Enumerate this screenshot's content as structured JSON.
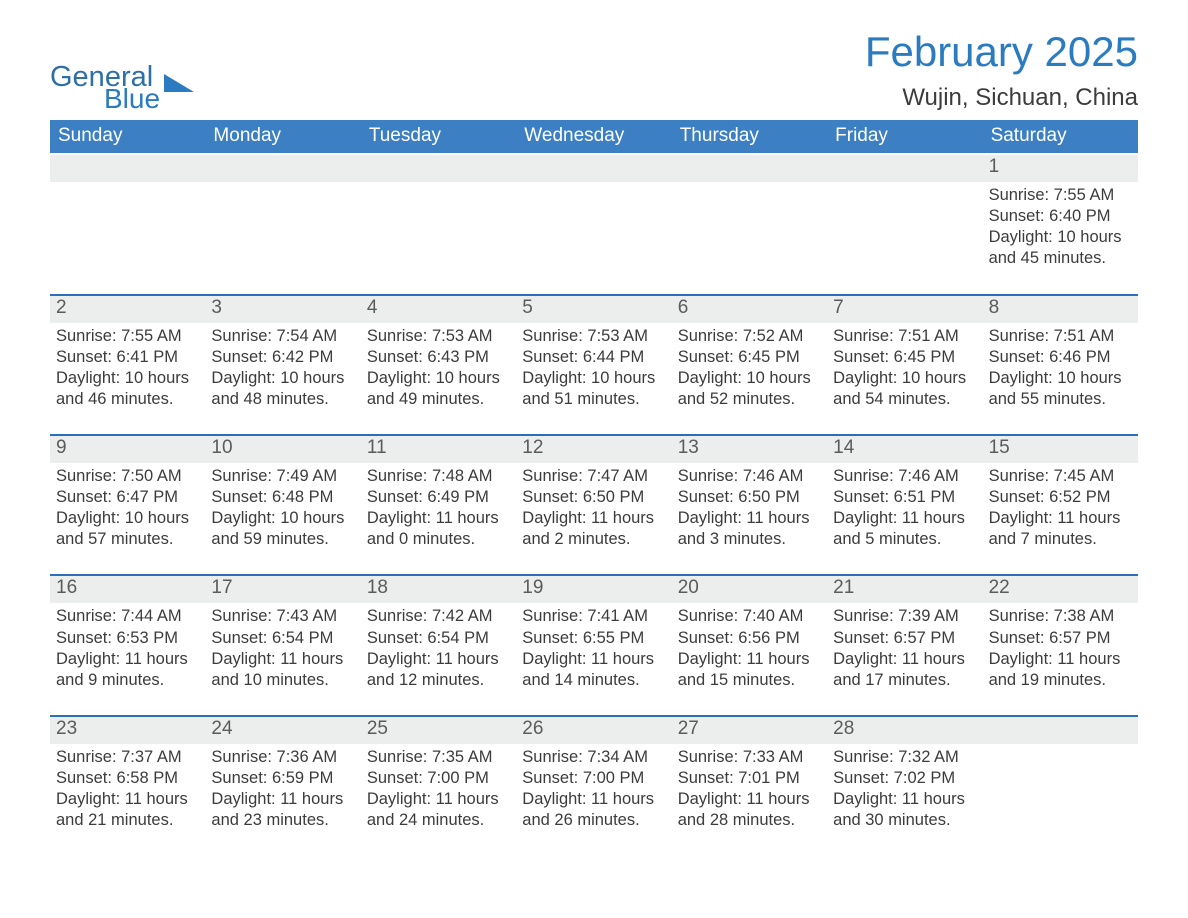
{
  "brand": {
    "word1": "General",
    "word2": "Blue"
  },
  "title": "February 2025",
  "location": "Wujin, Sichuan, China",
  "colors": {
    "header_bg": "#3c7fc2",
    "title": "#2b7bc1",
    "row_grey": "#eceded",
    "rule": "#2b6fb8",
    "text": "#3c3c3c",
    "white": "#ffffff"
  },
  "calendar": {
    "type": "table",
    "day_names": [
      "Sunday",
      "Monday",
      "Tuesday",
      "Wednesday",
      "Thursday",
      "Friday",
      "Saturday"
    ],
    "weeks": [
      [
        null,
        null,
        null,
        null,
        null,
        null,
        {
          "n": "1",
          "sunrise": "Sunrise: 7:55 AM",
          "sunset": "Sunset: 6:40 PM",
          "daylight": "Daylight: 10 hours and 45 minutes."
        }
      ],
      [
        {
          "n": "2",
          "sunrise": "Sunrise: 7:55 AM",
          "sunset": "Sunset: 6:41 PM",
          "daylight": "Daylight: 10 hours and 46 minutes."
        },
        {
          "n": "3",
          "sunrise": "Sunrise: 7:54 AM",
          "sunset": "Sunset: 6:42 PM",
          "daylight": "Daylight: 10 hours and 48 minutes."
        },
        {
          "n": "4",
          "sunrise": "Sunrise: 7:53 AM",
          "sunset": "Sunset: 6:43 PM",
          "daylight": "Daylight: 10 hours and 49 minutes."
        },
        {
          "n": "5",
          "sunrise": "Sunrise: 7:53 AM",
          "sunset": "Sunset: 6:44 PM",
          "daylight": "Daylight: 10 hours and 51 minutes."
        },
        {
          "n": "6",
          "sunrise": "Sunrise: 7:52 AM",
          "sunset": "Sunset: 6:45 PM",
          "daylight": "Daylight: 10 hours and 52 minutes."
        },
        {
          "n": "7",
          "sunrise": "Sunrise: 7:51 AM",
          "sunset": "Sunset: 6:45 PM",
          "daylight": "Daylight: 10 hours and 54 minutes."
        },
        {
          "n": "8",
          "sunrise": "Sunrise: 7:51 AM",
          "sunset": "Sunset: 6:46 PM",
          "daylight": "Daylight: 10 hours and 55 minutes."
        }
      ],
      [
        {
          "n": "9",
          "sunrise": "Sunrise: 7:50 AM",
          "sunset": "Sunset: 6:47 PM",
          "daylight": "Daylight: 10 hours and 57 minutes."
        },
        {
          "n": "10",
          "sunrise": "Sunrise: 7:49 AM",
          "sunset": "Sunset: 6:48 PM",
          "daylight": "Daylight: 10 hours and 59 minutes."
        },
        {
          "n": "11",
          "sunrise": "Sunrise: 7:48 AM",
          "sunset": "Sunset: 6:49 PM",
          "daylight": "Daylight: 11 hours and 0 minutes."
        },
        {
          "n": "12",
          "sunrise": "Sunrise: 7:47 AM",
          "sunset": "Sunset: 6:50 PM",
          "daylight": "Daylight: 11 hours and 2 minutes."
        },
        {
          "n": "13",
          "sunrise": "Sunrise: 7:46 AM",
          "sunset": "Sunset: 6:50 PM",
          "daylight": "Daylight: 11 hours and 3 minutes."
        },
        {
          "n": "14",
          "sunrise": "Sunrise: 7:46 AM",
          "sunset": "Sunset: 6:51 PM",
          "daylight": "Daylight: 11 hours and 5 minutes."
        },
        {
          "n": "15",
          "sunrise": "Sunrise: 7:45 AM",
          "sunset": "Sunset: 6:52 PM",
          "daylight": "Daylight: 11 hours and 7 minutes."
        }
      ],
      [
        {
          "n": "16",
          "sunrise": "Sunrise: 7:44 AM",
          "sunset": "Sunset: 6:53 PM",
          "daylight": "Daylight: 11 hours and 9 minutes."
        },
        {
          "n": "17",
          "sunrise": "Sunrise: 7:43 AM",
          "sunset": "Sunset: 6:54 PM",
          "daylight": "Daylight: 11 hours and 10 minutes."
        },
        {
          "n": "18",
          "sunrise": "Sunrise: 7:42 AM",
          "sunset": "Sunset: 6:54 PM",
          "daylight": "Daylight: 11 hours and 12 minutes."
        },
        {
          "n": "19",
          "sunrise": "Sunrise: 7:41 AM",
          "sunset": "Sunset: 6:55 PM",
          "daylight": "Daylight: 11 hours and 14 minutes."
        },
        {
          "n": "20",
          "sunrise": "Sunrise: 7:40 AM",
          "sunset": "Sunset: 6:56 PM",
          "daylight": "Daylight: 11 hours and 15 minutes."
        },
        {
          "n": "21",
          "sunrise": "Sunrise: 7:39 AM",
          "sunset": "Sunset: 6:57 PM",
          "daylight": "Daylight: 11 hours and 17 minutes."
        },
        {
          "n": "22",
          "sunrise": "Sunrise: 7:38 AM",
          "sunset": "Sunset: 6:57 PM",
          "daylight": "Daylight: 11 hours and 19 minutes."
        }
      ],
      [
        {
          "n": "23",
          "sunrise": "Sunrise: 7:37 AM",
          "sunset": "Sunset: 6:58 PM",
          "daylight": "Daylight: 11 hours and 21 minutes."
        },
        {
          "n": "24",
          "sunrise": "Sunrise: 7:36 AM",
          "sunset": "Sunset: 6:59 PM",
          "daylight": "Daylight: 11 hours and 23 minutes."
        },
        {
          "n": "25",
          "sunrise": "Sunrise: 7:35 AM",
          "sunset": "Sunset: 7:00 PM",
          "daylight": "Daylight: 11 hours and 24 minutes."
        },
        {
          "n": "26",
          "sunrise": "Sunrise: 7:34 AM",
          "sunset": "Sunset: 7:00 PM",
          "daylight": "Daylight: 11 hours and 26 minutes."
        },
        {
          "n": "27",
          "sunrise": "Sunrise: 7:33 AM",
          "sunset": "Sunset: 7:01 PM",
          "daylight": "Daylight: 11 hours and 28 minutes."
        },
        {
          "n": "28",
          "sunrise": "Sunrise: 7:32 AM",
          "sunset": "Sunset: 7:02 PM",
          "daylight": "Daylight: 11 hours and 30 minutes."
        },
        null
      ]
    ]
  }
}
